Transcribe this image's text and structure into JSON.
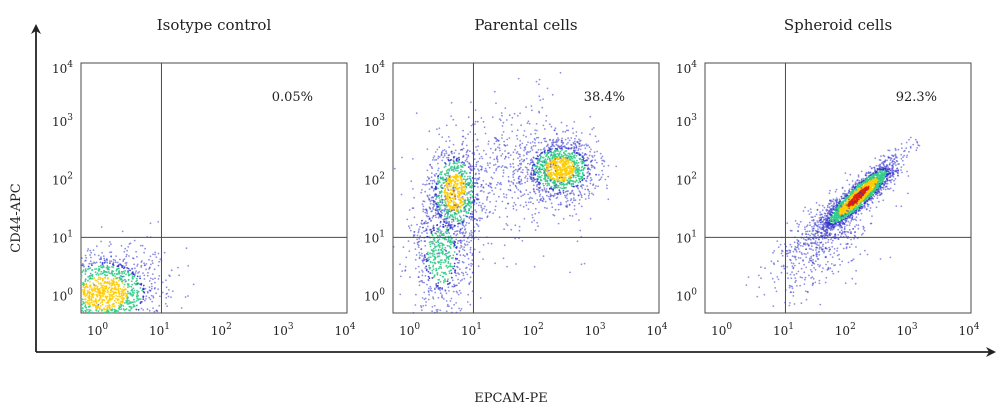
{
  "chart_data": [
    {
      "type": "scatter",
      "title": "Isotype control",
      "xscale": "log",
      "yscale": "log",
      "xlim": [
        0.5,
        10000
      ],
      "ylim": [
        0.5,
        10000
      ],
      "x_ticks": [
        "10^0",
        "10^1",
        "10^2",
        "10^3",
        "10^4"
      ],
      "y_ticks": [
        "10^0",
        "10^1",
        "10^2",
        "10^3",
        "10^4"
      ],
      "quadrant_gate": {
        "x": 10,
        "y": 10
      },
      "annotation": "0.05%",
      "populations": [
        {
          "center_x": 1.2,
          "center_y": 1.1,
          "spread_x_decades": 0.45,
          "spread_y_decades": 0.35,
          "events": 1400,
          "density": "high"
        },
        {
          "center_x": 4.0,
          "center_y": 3.5,
          "spread_x_decades": 0.45,
          "spread_y_decades": 0.4,
          "events": 40,
          "density": "low"
        }
      ]
    },
    {
      "type": "scatter",
      "title": "Parental cells",
      "xscale": "log",
      "yscale": "log",
      "xlim": [
        0.5,
        10000
      ],
      "ylim": [
        0.5,
        10000
      ],
      "x_ticks": [
        "10^0",
        "10^1",
        "10^2",
        "10^3",
        "10^4"
      ],
      "y_ticks": [
        "10^0",
        "10^1",
        "10^2",
        "10^3",
        "10^4"
      ],
      "quadrant_gate": {
        "x": 10,
        "y": 10
      },
      "annotation": "38.4%",
      "populations": [
        {
          "center_x": 5,
          "center_y": 60,
          "spread_x_decades": 0.22,
          "spread_y_decades": 0.4,
          "events": 900,
          "density": "high"
        },
        {
          "center_x": 250,
          "center_y": 150,
          "spread_x_decades": 0.3,
          "spread_y_decades": 0.25,
          "events": 1200,
          "density": "high"
        },
        {
          "center_x": 3,
          "center_y": 5,
          "spread_x_decades": 0.25,
          "spread_y_decades": 0.55,
          "events": 700,
          "density": "medium"
        },
        {
          "center_x": 40,
          "center_y": 150,
          "spread_x_decades": 0.6,
          "spread_y_decades": 0.6,
          "events": 500,
          "density": "low"
        }
      ]
    },
    {
      "type": "scatter",
      "title": "Spheroid cells",
      "xscale": "log",
      "yscale": "log",
      "xlim": [
        0.5,
        10000
      ],
      "ylim": [
        0.5,
        10000
      ],
      "x_ticks": [
        "10^0",
        "10^1",
        "10^2",
        "10^3",
        "10^4"
      ],
      "y_ticks": [
        "10^0",
        "10^1",
        "10^2",
        "10^3",
        "10^4"
      ],
      "quadrant_gate": {
        "x": 10,
        "y": 10
      },
      "annotation": "92.3%",
      "populations": [
        {
          "center_x": 150,
          "center_y": 50,
          "spread_x_decades": 0.3,
          "spread_y_decades": 0.3,
          "correlation": 0.9,
          "events": 2500,
          "density": "very-high"
        },
        {
          "center_x": 40,
          "center_y": 8,
          "spread_x_decades": 0.45,
          "spread_y_decades": 0.45,
          "correlation": 0.6,
          "events": 500,
          "density": "low"
        }
      ]
    }
  ],
  "axes": {
    "x_label": "EPCAM-PE",
    "y_label": "CD44-APC"
  },
  "colors": {
    "low_density": "#3333cc",
    "mid_density": "#33cc88",
    "high_density": "#ffcc00",
    "peak_density": "#dd2211",
    "gate_line": "#4a4a4a"
  }
}
